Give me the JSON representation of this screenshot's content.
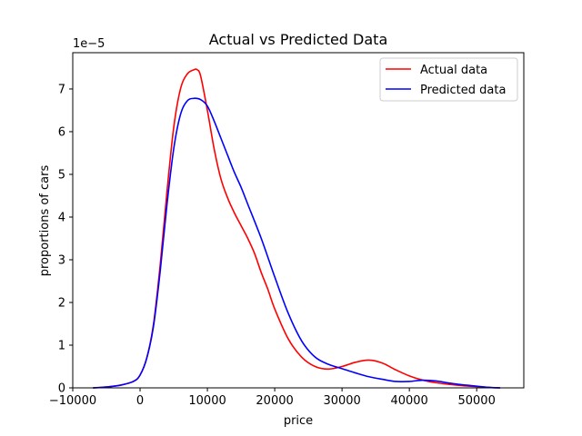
{
  "chart_data": {
    "type": "line",
    "title": "Actual vs Predicted Data",
    "xlabel": "price",
    "ylabel": "proportions of cars",
    "y_offset_label": "1e−5",
    "xlim": [
      -10000,
      57000
    ],
    "ylim": [
      0,
      7.85
    ],
    "x_ticks": [
      -10000,
      0,
      10000,
      20000,
      30000,
      40000,
      50000
    ],
    "x_tick_labels": [
      "−10000",
      "0",
      "10000",
      "20000",
      "30000",
      "40000",
      "50000"
    ],
    "y_ticks": [
      0,
      1,
      2,
      3,
      4,
      5,
      6,
      7
    ],
    "y_tick_labels": [
      "0",
      "1",
      "2",
      "3",
      "4",
      "5",
      "6",
      "7"
    ],
    "grid": false,
    "legend_position": "upper right",
    "series": [
      {
        "name": "Actual data",
        "color": "#ff0000",
        "x": [
          -7000,
          -5000,
          -3000,
          -1000,
          0,
          1000,
          2000,
          3000,
          4000,
          5000,
          6000,
          7000,
          8000,
          8500,
          9000,
          10000,
          11000,
          12000,
          13000,
          14000,
          15000,
          16000,
          17000,
          18000,
          19000,
          20000,
          22000,
          24000,
          26000,
          28000,
          30000,
          32000,
          34000,
          36000,
          38000,
          40000,
          42000,
          44000,
          46000,
          48000,
          50000,
          52000,
          53500
        ],
        "y": [
          0.0,
          0.02,
          0.06,
          0.15,
          0.3,
          0.7,
          1.5,
          2.9,
          4.6,
          6.1,
          7.0,
          7.35,
          7.45,
          7.45,
          7.3,
          6.5,
          5.6,
          4.9,
          4.45,
          4.1,
          3.8,
          3.5,
          3.15,
          2.7,
          2.3,
          1.85,
          1.15,
          0.72,
          0.5,
          0.44,
          0.5,
          0.6,
          0.65,
          0.58,
          0.42,
          0.28,
          0.18,
          0.12,
          0.08,
          0.05,
          0.03,
          0.01,
          0.0
        ]
      },
      {
        "name": "Predicted data",
        "color": "#0000ff",
        "x": [
          -7000,
          -5000,
          -3000,
          -1000,
          0,
          1000,
          2000,
          3000,
          4000,
          5000,
          6000,
          7000,
          8000,
          9000,
          10000,
          11000,
          12000,
          13000,
          14000,
          15000,
          16000,
          18000,
          20000,
          22000,
          24000,
          26000,
          28000,
          30000,
          32000,
          34000,
          36000,
          38000,
          40000,
          42000,
          44000,
          46000,
          48000,
          50000,
          52000,
          53500
        ],
        "y": [
          0.0,
          0.02,
          0.06,
          0.15,
          0.3,
          0.7,
          1.45,
          2.75,
          4.3,
          5.6,
          6.4,
          6.72,
          6.78,
          6.75,
          6.6,
          6.25,
          5.85,
          5.45,
          5.05,
          4.7,
          4.3,
          3.5,
          2.6,
          1.75,
          1.1,
          0.72,
          0.55,
          0.45,
          0.35,
          0.26,
          0.2,
          0.15,
          0.15,
          0.18,
          0.16,
          0.11,
          0.07,
          0.04,
          0.01,
          0.0
        ]
      }
    ]
  }
}
